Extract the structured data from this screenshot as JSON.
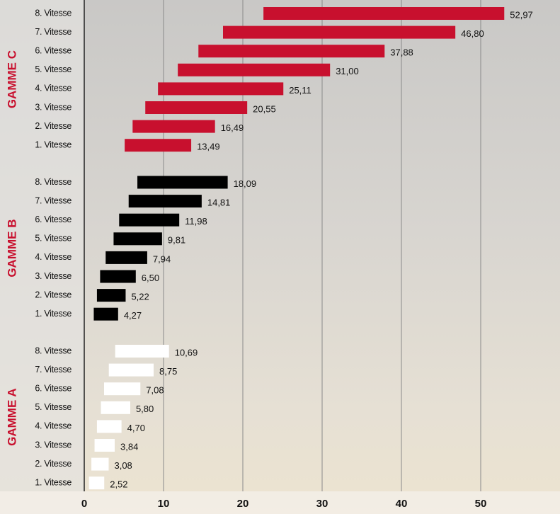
{
  "chart_data": {
    "type": "floating-bar",
    "xlim": [
      0,
      60
    ],
    "xticks": [
      0,
      10,
      20,
      30,
      40,
      50
    ],
    "grid": true,
    "series": [
      {
        "name": "GAMME C",
        "color": "#c8102e",
        "categories": [
          "8. Vitesse",
          "7. Vitesse",
          "6. Vitesse",
          "5. Vitesse",
          "4. Vitesse",
          "3. Vitesse",
          "2. Vitesse",
          "1. Vitesse"
        ],
        "starts": [
          22.6,
          17.5,
          14.4,
          11.8,
          9.3,
          7.7,
          6.1,
          5.1
        ],
        "values": [
          52.97,
          46.8,
          37.88,
          31.0,
          25.11,
          20.55,
          16.49,
          13.49
        ],
        "value_labels": [
          "52,97",
          "46,80",
          "37,88",
          "31,00",
          "25,11",
          "20,55",
          "16,49",
          "13,49"
        ]
      },
      {
        "name": "GAMME B",
        "color": "#000000",
        "categories": [
          "8. Vitesse",
          "7. Vitesse",
          "6. Vitesse",
          "5. Vitesse",
          "4. Vitesse",
          "3. Vitesse",
          "2. Vitesse",
          "1. Vitesse"
        ],
        "starts": [
          6.7,
          5.6,
          4.4,
          3.7,
          2.7,
          2.0,
          1.6,
          1.2
        ],
        "values": [
          18.09,
          14.81,
          11.98,
          9.81,
          7.94,
          6.5,
          5.22,
          4.27
        ],
        "value_labels": [
          "18,09",
          "14,81",
          "11,98",
          "9,81",
          "7,94",
          "6,50",
          "5,22",
          "4,27"
        ]
      },
      {
        "name": "GAMME A",
        "color": "#ffffff",
        "categories": [
          "8. Vitesse",
          "7. Vitesse",
          "6. Vitesse",
          "5. Vitesse",
          "4. Vitesse",
          "3. Vitesse",
          "2. Vitesse",
          "1. Vitesse"
        ],
        "starts": [
          3.9,
          3.1,
          2.5,
          2.1,
          1.6,
          1.3,
          0.9,
          0.6
        ],
        "values": [
          10.69,
          8.75,
          7.08,
          5.8,
          4.7,
          3.84,
          3.08,
          2.52
        ],
        "value_labels": [
          "10,69",
          "8,75",
          "7,08",
          "5,80",
          "4,70",
          "3,84",
          "3,08",
          "2,52"
        ]
      }
    ]
  }
}
